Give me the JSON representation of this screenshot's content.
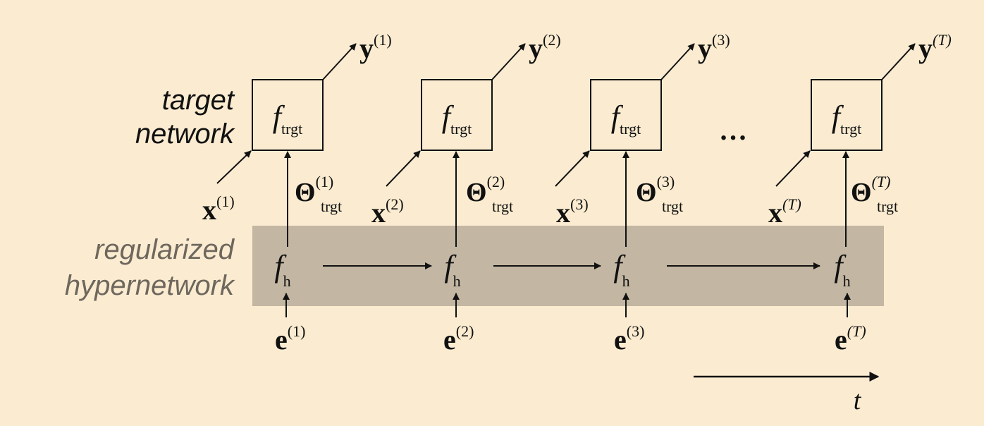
{
  "labels": {
    "target_line1": "target",
    "target_line2": "network",
    "hyper_line1": "regularized",
    "hyper_line2": "hypernetwork"
  },
  "ellipsis": "…",
  "time_label": "t",
  "steps": [
    {
      "x": "x",
      "x_sup": "(1)",
      "y": "y",
      "y_sup": "(1)",
      "theta": "Θ",
      "theta_sup": "(1)",
      "theta_sub": "trgt",
      "f_trgt": "f",
      "f_trgt_sub": "trgt",
      "f_h": "f",
      "f_h_sub": "h",
      "e": "e",
      "e_sup": "(1)"
    },
    {
      "x": "x",
      "x_sup": "(2)",
      "y": "y",
      "y_sup": "(2)",
      "theta": "Θ",
      "theta_sup": "(2)",
      "theta_sub": "trgt",
      "f_trgt": "f",
      "f_trgt_sub": "trgt",
      "f_h": "f",
      "f_h_sub": "h",
      "e": "e",
      "e_sup": "(2)"
    },
    {
      "x": "x",
      "x_sup": "(3)",
      "y": "y",
      "y_sup": "(3)",
      "theta": "Θ",
      "theta_sup": "(3)",
      "theta_sub": "trgt",
      "f_trgt": "f",
      "f_trgt_sub": "trgt",
      "f_h": "f",
      "f_h_sub": "h",
      "e": "e",
      "e_sup": "(3)"
    },
    {
      "x": "x",
      "x_sup": "(T)",
      "y": "y",
      "y_sup": "(T)",
      "theta": "Θ",
      "theta_sup": "(T)",
      "theta_sub": "trgt",
      "f_trgt": "f",
      "f_trgt_sub": "trgt",
      "f_h": "f",
      "f_h_sub": "h",
      "e": "e",
      "e_sup": "(T)"
    }
  ],
  "colors": {
    "background": "#fbecd1",
    "hyper_band": "#c3b7a3",
    "target_text": "#111111",
    "hyper_text": "#6e675d",
    "stroke": "#111111"
  }
}
